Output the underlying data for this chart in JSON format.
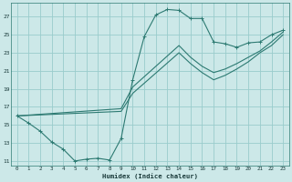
{
  "xlabel": "Humidex (Indice chaleur)",
  "xlim": [
    -0.5,
    23.5
  ],
  "ylim": [
    10.5,
    28.5
  ],
  "xticks": [
    0,
    1,
    2,
    3,
    4,
    5,
    6,
    7,
    8,
    9,
    10,
    11,
    12,
    13,
    14,
    15,
    16,
    17,
    18,
    19,
    20,
    21,
    22,
    23
  ],
  "yticks": [
    11,
    13,
    15,
    17,
    19,
    21,
    23,
    25,
    27
  ],
  "bg_color": "#cce8e8",
  "grid_color": "#99cccc",
  "line_color": "#2d7a72",
  "line1_x": [
    0,
    1,
    2,
    3,
    4,
    5,
    6,
    7,
    8,
    9,
    10,
    11,
    12,
    13,
    14,
    15,
    16,
    17,
    18,
    19,
    20,
    21,
    22,
    23
  ],
  "line1_y": [
    16.0,
    15.2,
    14.3,
    13.1,
    12.3,
    11.0,
    11.2,
    11.3,
    11.1,
    13.5,
    20.0,
    24.8,
    27.2,
    27.8,
    27.7,
    26.8,
    26.8,
    24.2,
    24.0,
    23.6,
    24.1,
    24.2,
    25.0,
    25.5
  ],
  "line2_x": [
    0,
    9,
    10,
    14,
    15,
    16,
    17,
    18,
    19,
    20,
    21,
    22,
    23
  ],
  "line2_y": [
    16.0,
    16.8,
    19.2,
    23.8,
    22.5,
    21.5,
    20.8,
    21.2,
    21.8,
    22.5,
    23.2,
    24.2,
    25.3
  ],
  "line3_x": [
    0,
    9,
    10,
    14,
    15,
    16,
    17,
    18,
    19,
    20,
    21,
    22,
    23
  ],
  "line3_y": [
    16.0,
    16.5,
    18.5,
    23.0,
    21.8,
    20.8,
    20.0,
    20.5,
    21.2,
    22.0,
    23.0,
    23.8,
    25.0
  ]
}
